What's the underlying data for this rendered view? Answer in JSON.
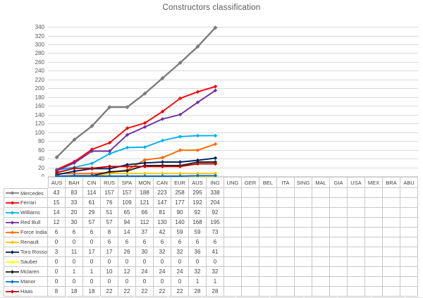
{
  "title": "Constructors classification",
  "chart_data": {
    "type": "line",
    "title": "Constructors classification",
    "categories": [
      "AUS",
      "BAH",
      "CIN",
      "RUS",
      "SPA",
      "MON",
      "CAN",
      "EUR",
      "AUS",
      "ING",
      "UNG",
      "GER",
      "BEL",
      "ITA",
      "SING",
      "MAL",
      "GIA",
      "USA",
      "MEX",
      "BRA",
      "ABU"
    ],
    "rounds_with_data": 10,
    "series": [
      {
        "name": "Mercedes",
        "color": "#7c7c7c",
        "values": [
          43,
          83,
          114,
          157,
          157,
          188,
          223,
          258,
          295,
          338
        ]
      },
      {
        "name": "Ferrari",
        "color": "#ff0000",
        "values": [
          15,
          33,
          61,
          76,
          109,
          121,
          147,
          177,
          192,
          204
        ]
      },
      {
        "name": "Williams",
        "color": "#00b0f0",
        "values": [
          14,
          20,
          29,
          51,
          65,
          66,
          81,
          90,
          92,
          92
        ]
      },
      {
        "name": "Red Bull",
        "color": "#7030a0",
        "values": [
          12,
          30,
          57,
          57,
          94,
          112,
          130,
          140,
          168,
          195
        ]
      },
      {
        "name": "Force India",
        "color": "#ff6600",
        "values": [
          6,
          6,
          6,
          8,
          14,
          37,
          42,
          59,
          59,
          73
        ]
      },
      {
        "name": "Renault",
        "color": "#ffc000",
        "values": [
          0,
          0,
          0,
          6,
          6,
          6,
          6,
          6,
          6,
          6
        ]
      },
      {
        "name": "Toro Rosso",
        "color": "#002060",
        "values": [
          3,
          11,
          17,
          17,
          26,
          30,
          32,
          32,
          36,
          41
        ]
      },
      {
        "name": "Sauber",
        "color": "#ffff00",
        "values": [
          0,
          0,
          0,
          0,
          0,
          0,
          0,
          0,
          0,
          0
        ]
      },
      {
        "name": "Mclaren",
        "color": "#1f1f1f",
        "values": [
          0,
          1,
          1,
          10,
          12,
          24,
          24,
          24,
          32,
          32
        ]
      },
      {
        "name": "Manor",
        "color": "#0070c0",
        "values": [
          0,
          0,
          0,
          0,
          0,
          0,
          0,
          0,
          1,
          1
        ]
      },
      {
        "name": "Haas",
        "color": "#c00000",
        "values": [
          8,
          18,
          18,
          22,
          22,
          22,
          22,
          22,
          28,
          28
        ]
      }
    ],
    "ylim": [
      0,
      340
    ],
    "yticks": [
      0,
      20,
      40,
      60,
      80,
      100,
      120,
      140,
      160,
      180,
      200,
      220,
      240,
      260,
      280,
      300,
      320,
      340
    ],
    "grid": true,
    "legend_position": "data-table-left-column",
    "colors": {
      "gridline": "#d9d9d9",
      "axis_text": "#595959",
      "table_border": "#c9c9c9",
      "table_text": "#404040"
    }
  }
}
